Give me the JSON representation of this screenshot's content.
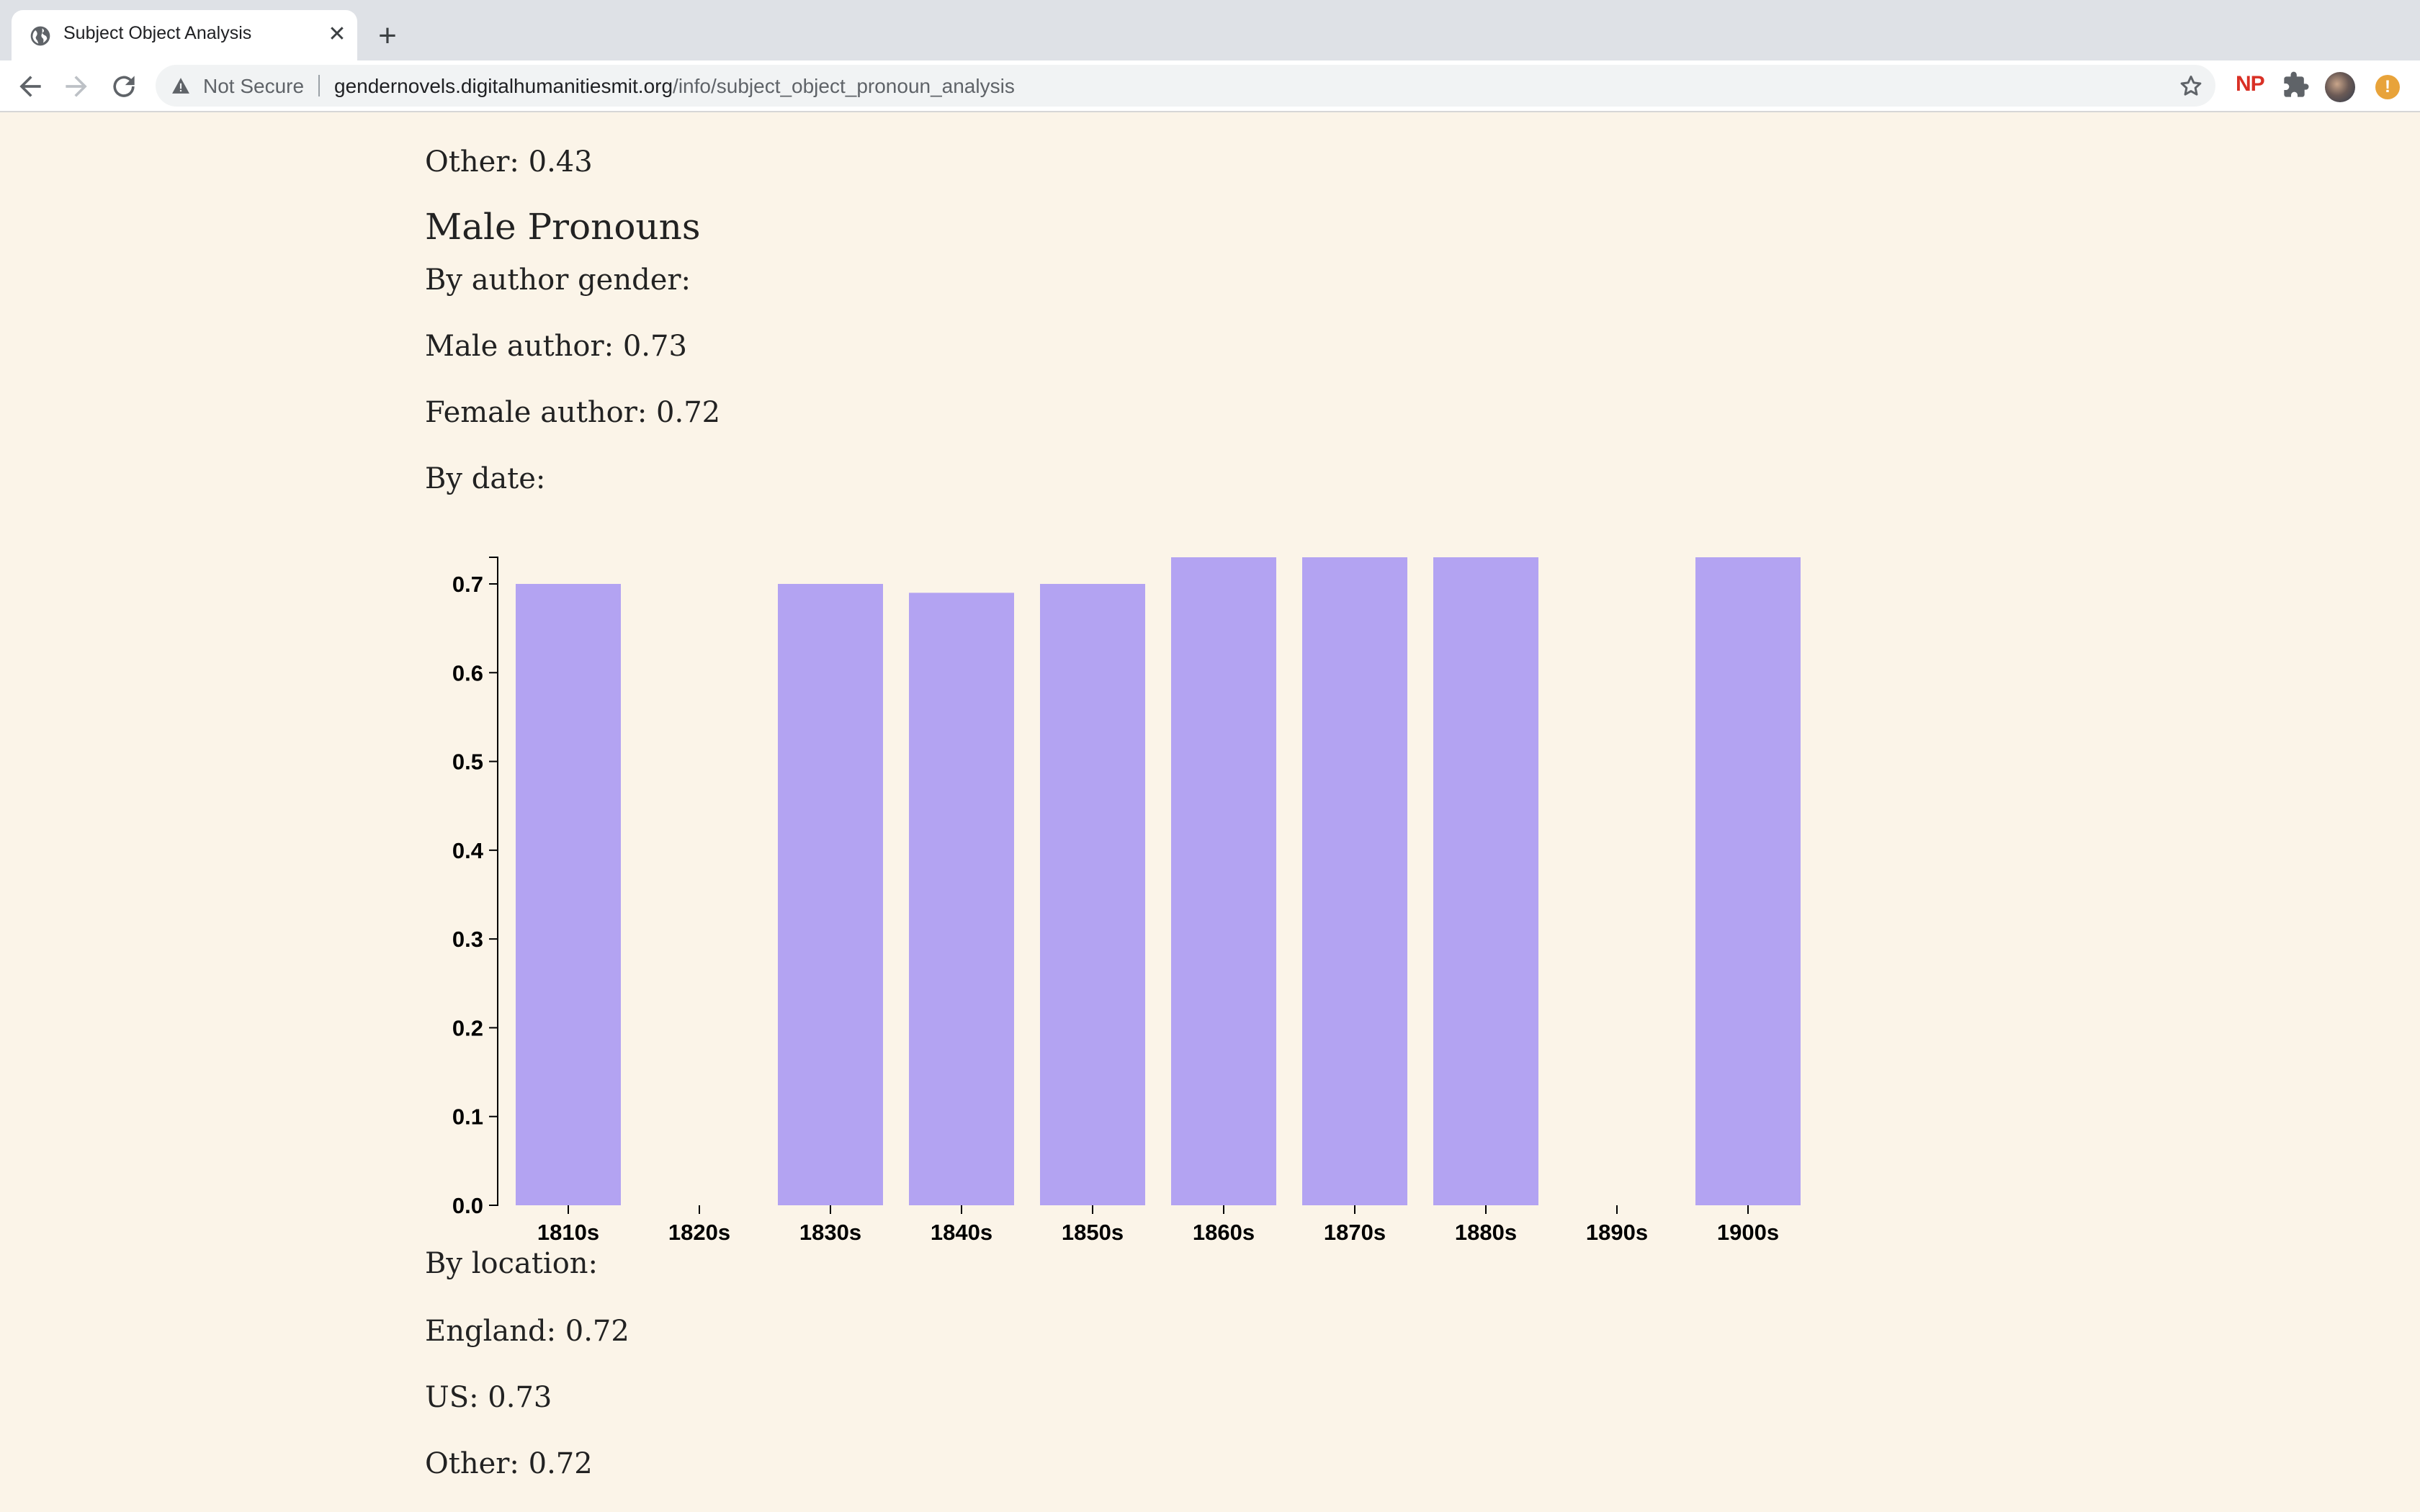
{
  "browser": {
    "tab_title": "Subject Object Analysis",
    "security_label": "Not Secure",
    "url_host": "gendernovels.digitalhumanitiesmit.org",
    "url_path": "/info/subject_object_pronoun_analysis",
    "extension_np_label": "NP",
    "extension_alert_label": "!"
  },
  "content": {
    "prev_other": "Other: 0.43",
    "male_heading": "Male Pronouns",
    "by_author_gender": "By author gender:",
    "male_author": "Male author: 0.73",
    "female_author": "Female author: 0.72",
    "by_date": "By date:",
    "by_location": "By location:",
    "england": "England: 0.72",
    "us": "US: 0.73",
    "other": "Other: 0.72"
  },
  "colors": {
    "page_background": "#fbf4e8",
    "bar_fill": "#b3a3f2"
  },
  "chart_data": {
    "type": "bar",
    "categories": [
      "1810s",
      "1820s",
      "1830s",
      "1840s",
      "1850s",
      "1860s",
      "1870s",
      "1880s",
      "1890s",
      "1900s"
    ],
    "values": [
      0.7,
      null,
      0.7,
      0.69,
      0.7,
      0.73,
      0.73,
      0.73,
      null,
      0.73
    ],
    "ylim": [
      0,
      0.73
    ],
    "yticks": [
      "0.0",
      "0.1",
      "0.2",
      "0.3",
      "0.4",
      "0.5",
      "0.6",
      "0.7"
    ],
    "title": "",
    "xlabel": "",
    "ylabel": "",
    "grid": false
  }
}
